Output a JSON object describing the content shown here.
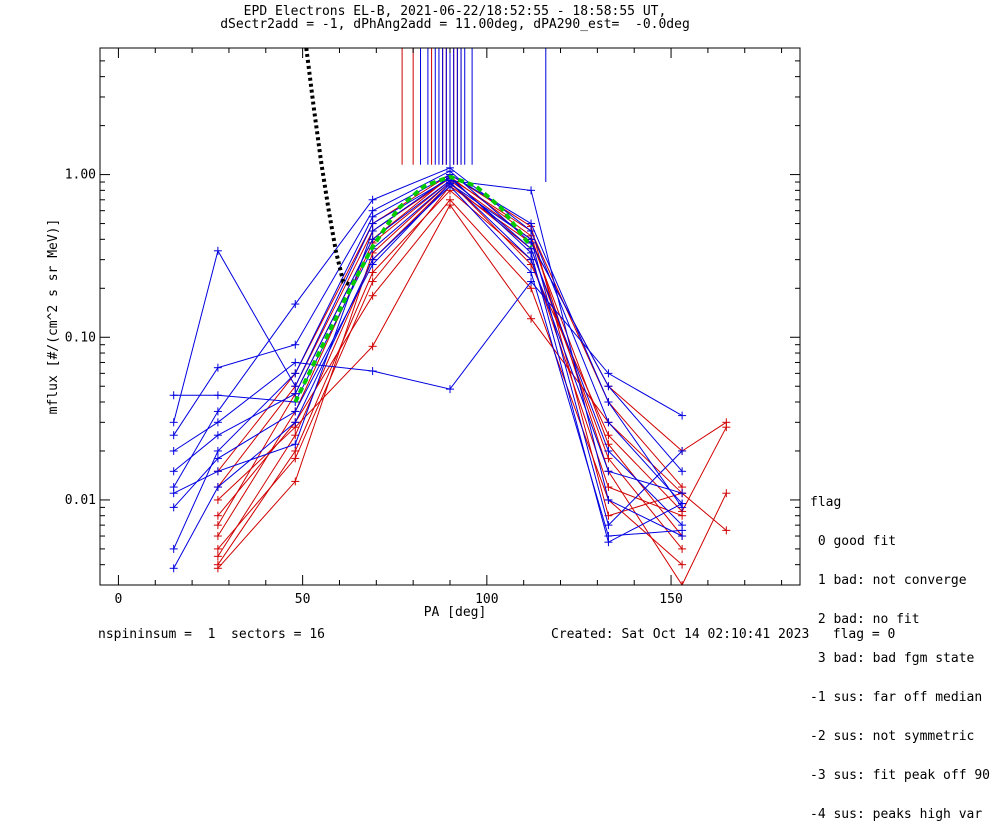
{
  "title_line1": "EPD Electrons EL-B, 2021-06-22/18:52:55 - 18:58:55 UT,",
  "title_line2": "dSectr2add = -1, dPhAng2add = 11.00deg, dPA290_est=  -0.0deg",
  "footer_left": "nspininsum =  1  sectors = 16",
  "footer_right": "Created: Sat Oct 14 02:10:41 2023   flag = 0",
  "legend": {
    "title": "flag",
    "items": [
      " 0 good fit",
      " 1 bad: not converge",
      " 2 bad: no fit",
      " 3 bad: bad fgm state",
      "-1 sus: far off median",
      "-2 sus: not symmetric",
      "-3 sus: fit peak off 90",
      "-4 sus: peaks high var"
    ]
  },
  "colors": {
    "red_series": "#d00000",
    "blue_series": "#0000e0",
    "fit_green": "#00cc00",
    "black_curve": "#000000"
  },
  "chart_data": {
    "type": "line",
    "xlabel": "PA [deg]",
    "ylabel": "mflux [#/(cm^2 s sr MeV)]",
    "xlim": [
      -5,
      185
    ],
    "ylim": [
      0.003,
      6.0
    ],
    "yscale": "log",
    "x_ticks": [
      0,
      50,
      100,
      150
    ],
    "x_tick_labels": [
      "0",
      "50",
      "100",
      "150"
    ],
    "y_ticks": [
      0.01,
      0.1,
      1.0
    ],
    "y_tick_labels": [
      "0.01",
      "0.10",
      "1.00"
    ],
    "red_vertical_lines_x": [
      77,
      80,
      85,
      88,
      89,
      90,
      91,
      92,
      93
    ],
    "blue_vertical_lines_x": [
      82,
      84,
      86,
      87,
      88,
      89,
      90,
      91,
      92,
      93,
      94,
      96,
      116
    ],
    "series_red": [
      {
        "x": [
          27,
          48,
          69,
          90,
          112,
          133,
          153
        ],
        "y": [
          0.0045,
          0.025,
          0.3,
          0.88,
          0.35,
          0.018,
          0.005
        ]
      },
      {
        "x": [
          27,
          48,
          69,
          90,
          112,
          133,
          153
        ],
        "y": [
          0.006,
          0.035,
          0.38,
          0.92,
          0.4,
          0.022,
          0.006
        ]
      },
      {
        "x": [
          27,
          48,
          69,
          90,
          112,
          133,
          153
        ],
        "y": [
          0.004,
          0.02,
          0.25,
          0.8,
          0.3,
          0.012,
          0.008
        ]
      },
      {
        "x": [
          27,
          48,
          69,
          90,
          112,
          133,
          153
        ],
        "y": [
          0.012,
          0.05,
          0.45,
          0.95,
          0.45,
          0.04,
          0.012
        ]
      },
      {
        "x": [
          27,
          48,
          69,
          90,
          112,
          133,
          153
        ],
        "y": [
          0.008,
          0.03,
          0.18,
          0.7,
          0.2,
          0.01,
          0.004
        ]
      },
      {
        "x": [
          27,
          48,
          69,
          90,
          112,
          133,
          153
        ],
        "y": [
          0.01,
          0.028,
          0.088,
          0.65,
          0.13,
          0.03,
          0.011
        ]
      },
      {
        "x": [
          27,
          48,
          69,
          90,
          112,
          133,
          153,
          165
        ],
        "y": [
          0.005,
          0.018,
          0.22,
          0.85,
          0.38,
          0.05,
          0.02,
          0.03
        ]
      },
      {
        "x": [
          27,
          48,
          69,
          90,
          112,
          133,
          153,
          165
        ],
        "y": [
          0.0038,
          0.013,
          0.33,
          0.9,
          0.28,
          0.025,
          0.0085,
          0.028
        ]
      },
      {
        "x": [
          27,
          48,
          69,
          90,
          112,
          133,
          153,
          165
        ],
        "y": [
          0.007,
          0.045,
          0.4,
          0.97,
          0.42,
          0.015,
          0.003,
          0.011
        ]
      },
      {
        "x": [
          27,
          48,
          69,
          90,
          112,
          133,
          153,
          165
        ],
        "y": [
          0.015,
          0.06,
          0.5,
          1.0,
          0.48,
          0.008,
          0.011,
          0.0065
        ]
      }
    ],
    "series_blue": [
      {
        "x": [
          15,
          27,
          48,
          69,
          90,
          112,
          133,
          153
        ],
        "y": [
          0.012,
          0.035,
          0.16,
          0.7,
          1.1,
          0.45,
          0.03,
          0.0095
        ]
      },
      {
        "x": [
          15,
          27,
          48,
          69,
          90,
          112,
          133,
          153
        ],
        "y": [
          0.03,
          0.34,
          0.05,
          0.5,
          0.95,
          0.35,
          0.02,
          0.007
        ]
      },
      {
        "x": [
          15,
          27,
          48,
          69,
          90,
          112,
          133,
          153
        ],
        "y": [
          0.044,
          0.044,
          0.04,
          0.35,
          0.9,
          0.3,
          0.015,
          0.011
        ]
      },
      {
        "x": [
          15,
          27,
          48,
          69,
          90,
          112,
          133,
          153
        ],
        "y": [
          0.005,
          0.02,
          0.06,
          0.55,
          1.0,
          0.5,
          0.04,
          0.009
        ]
      },
      {
        "x": [
          15,
          27,
          48,
          69,
          90,
          112,
          133,
          153
        ],
        "y": [
          0.0038,
          0.012,
          0.03,
          0.3,
          0.85,
          0.25,
          0.006,
          0.0065
        ]
      },
      {
        "x": [
          15,
          27,
          48,
          69,
          90,
          112,
          133,
          153
        ],
        "y": [
          0.02,
          0.03,
          0.07,
          0.062,
          0.048,
          0.22,
          0.06,
          0.033
        ]
      },
      {
        "x": [
          15,
          27,
          48,
          69,
          90,
          112,
          133,
          153
        ],
        "y": [
          0.015,
          0.025,
          0.045,
          0.4,
          0.92,
          0.8,
          0.01,
          0.006
        ]
      },
      {
        "x": [
          15,
          27,
          48,
          69,
          90,
          112,
          133,
          153
        ],
        "y": [
          0.009,
          0.018,
          0.035,
          0.28,
          0.88,
          0.4,
          0.007,
          0.02
        ]
      },
      {
        "x": [
          15,
          27,
          48,
          69,
          90,
          112,
          133,
          153
        ],
        "y": [
          0.025,
          0.065,
          0.09,
          0.6,
          1.05,
          0.38,
          0.05,
          0.015
        ]
      },
      {
        "x": [
          15,
          27,
          48,
          69,
          90,
          112,
          133,
          153
        ],
        "y": [
          0.011,
          0.015,
          0.022,
          0.45,
          0.97,
          0.33,
          0.0055,
          0.0095
        ]
      }
    ],
    "fit_green": {
      "x": [
        48,
        55,
        62,
        69,
        76,
        83,
        90,
        97,
        104,
        112
      ],
      "y": [
        0.04,
        0.085,
        0.18,
        0.36,
        0.62,
        0.85,
        0.97,
        0.85,
        0.62,
        0.36
      ]
    },
    "black_curve": {
      "x": [
        51,
        53,
        55,
        57,
        59,
        61,
        63
      ],
      "y": [
        6.0,
        2.6,
        1.2,
        0.62,
        0.34,
        0.22,
        0.21
      ]
    }
  }
}
